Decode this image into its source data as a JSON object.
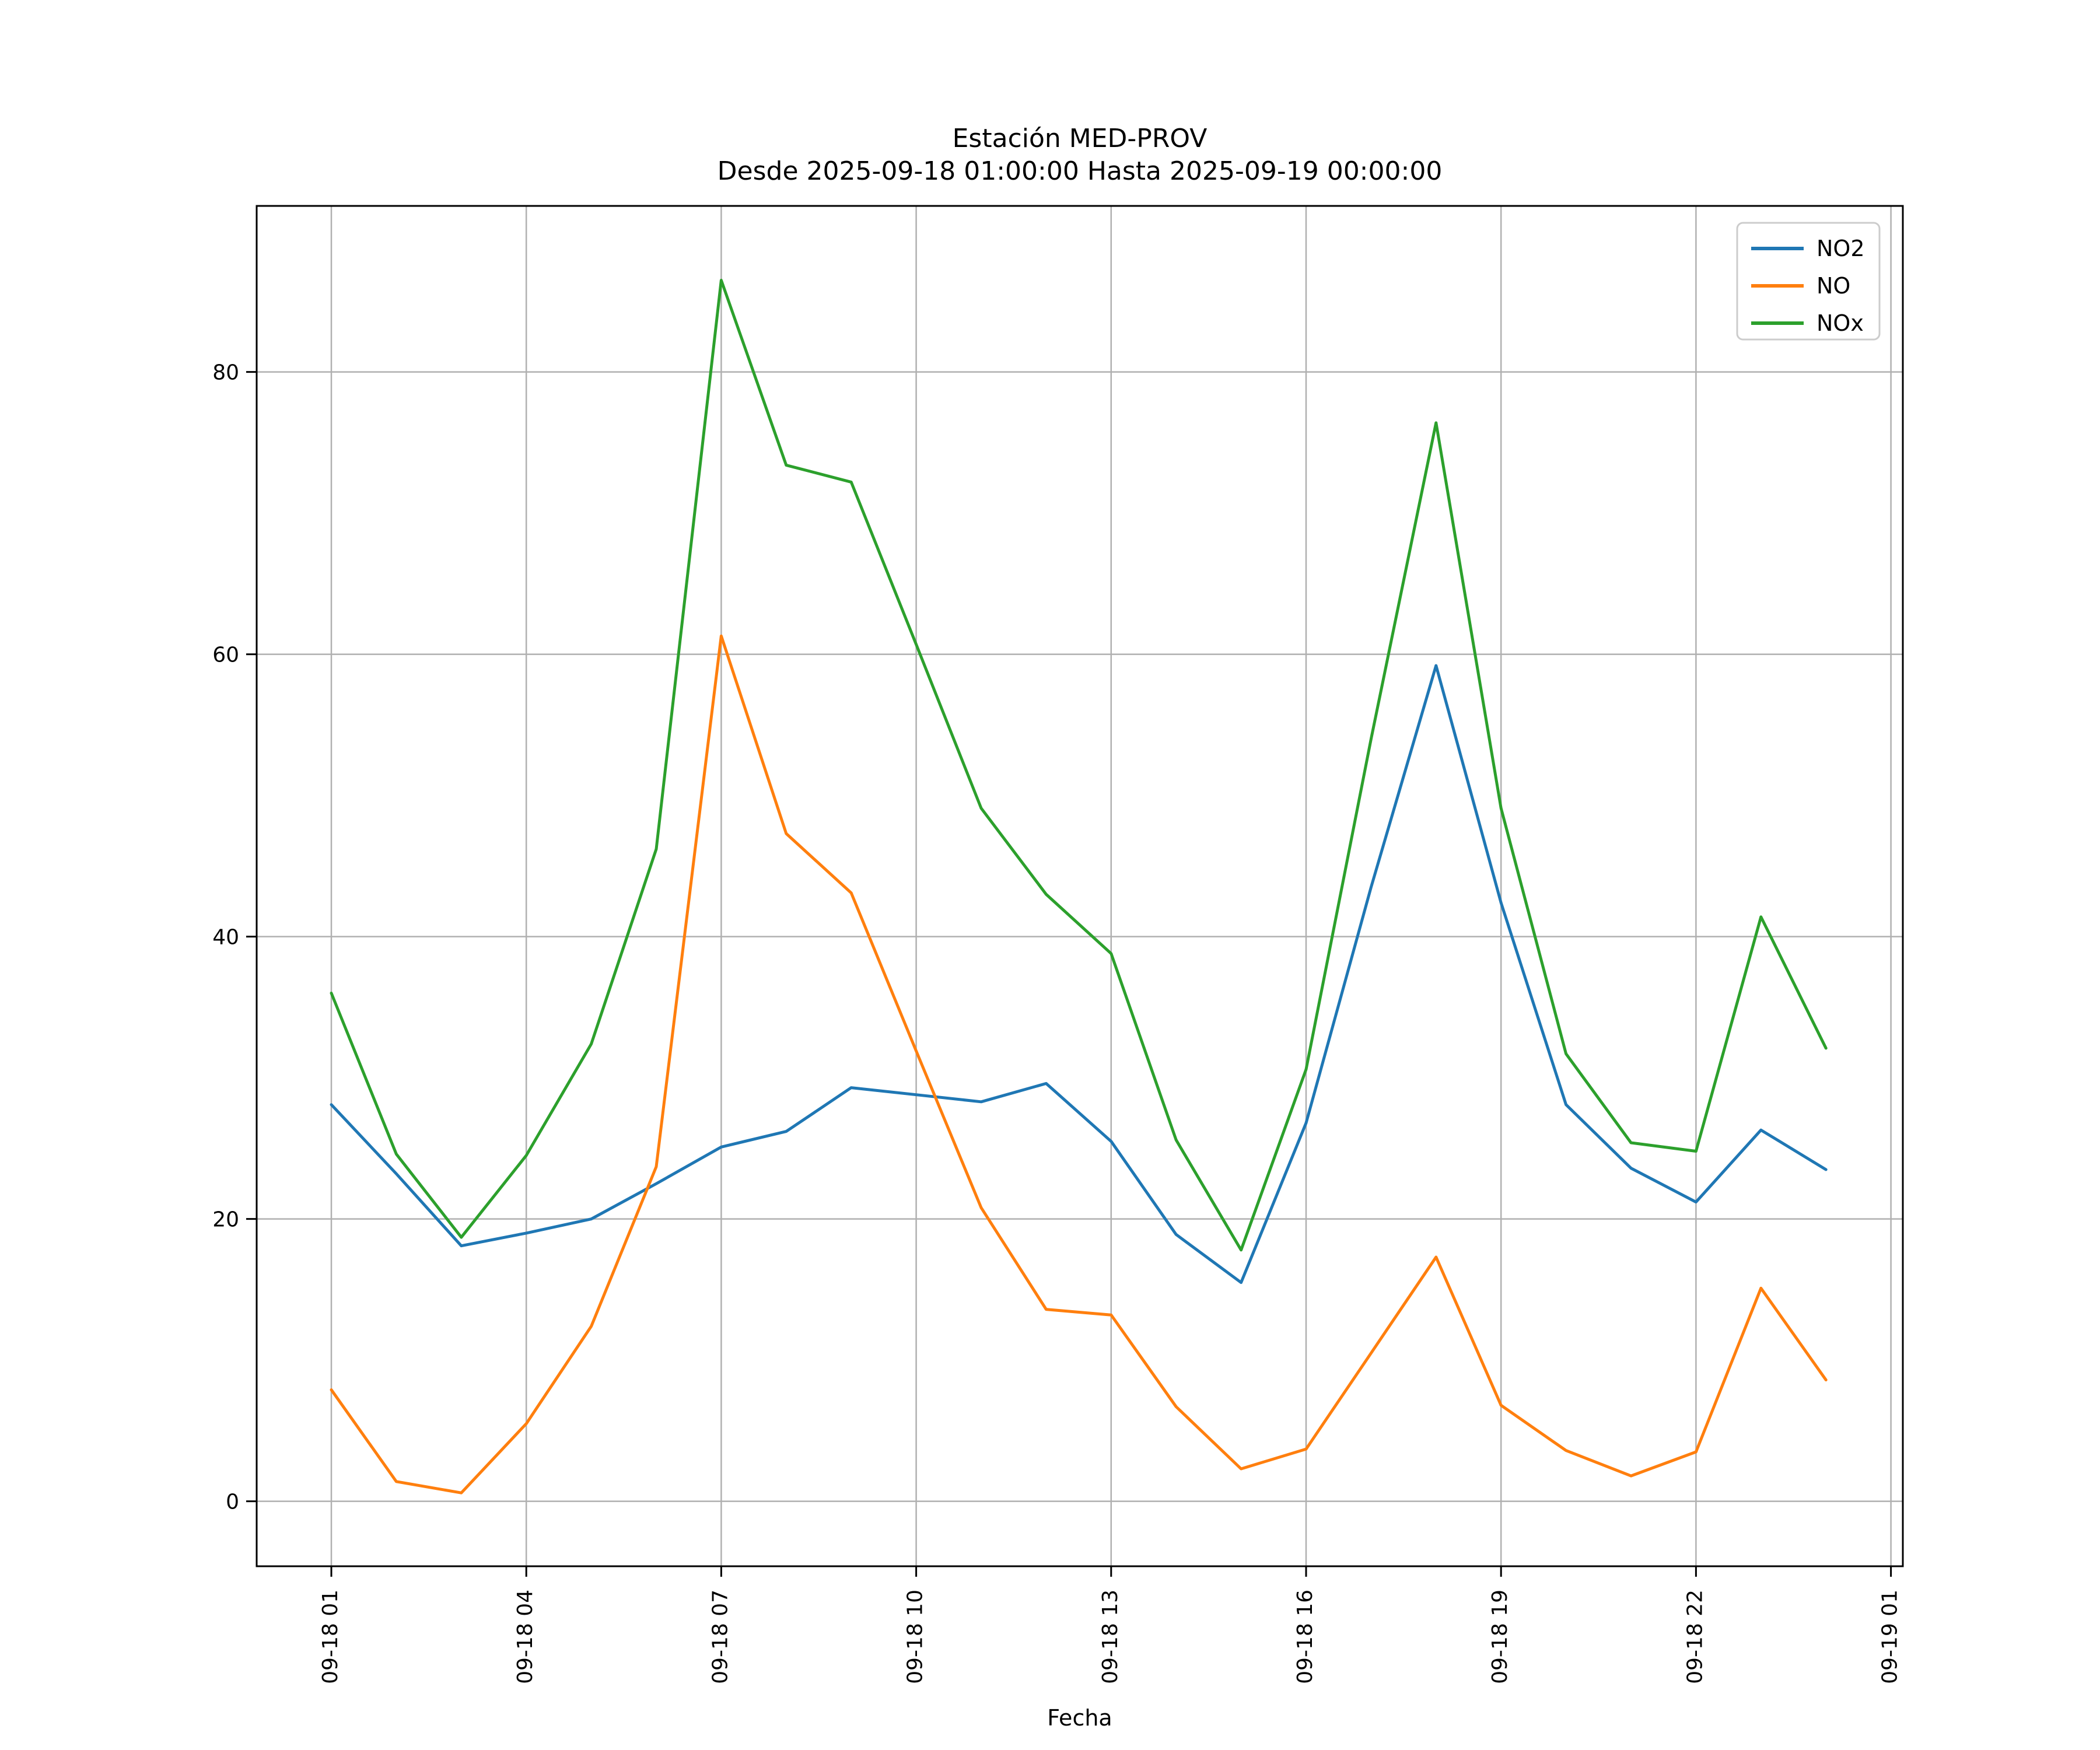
{
  "title": "Estación MED-PROV",
  "subtitle": "Desde 2025-09-18 01:00:00 Hasta 2025-09-19 00:00:00",
  "xlabel": "Fecha",
  "legend": {
    "position": "upper-right",
    "entries": [
      "NO2",
      "NO",
      "NOx"
    ]
  },
  "colors": {
    "NO2": "#1f77b4",
    "NO": "#ff7f0e",
    "NOx": "#2ca02c",
    "grid": "#b0b0b0",
    "spine": "#000000",
    "legend_border": "#cccccc"
  },
  "chart_data": {
    "type": "line",
    "title": "Estación MED-PROV\nDesde 2025-09-18 01:00:00 Hasta 2025-09-19 00:00:00",
    "xlabel": "Fecha",
    "ylabel": "",
    "grid": true,
    "legend_position": "upper right",
    "ylim": [
      -4.6,
      91.7
    ],
    "y_ticks": [
      0,
      20,
      40,
      60,
      80
    ],
    "x_tick_labels": [
      "09-18 01",
      "09-18 04",
      "09-18 07",
      "09-18 10",
      "09-18 13",
      "09-18 16",
      "09-18 19",
      "09-18 22",
      "09-19 01"
    ],
    "x": [
      "09-18 01",
      "09-18 02",
      "09-18 03",
      "09-18 04",
      "09-18 05",
      "09-18 06",
      "09-18 07",
      "09-18 08",
      "09-18 09",
      "09-18 10",
      "09-18 11",
      "09-18 12",
      "09-18 13",
      "09-18 14",
      "09-18 15",
      "09-18 16",
      "09-18 17",
      "09-18 18",
      "09-18 19",
      "09-18 20",
      "09-18 21",
      "09-18 22",
      "09-18 23",
      "09-19 00"
    ],
    "series": [
      {
        "name": "NO2",
        "color": "#1f77b4",
        "values": [
          28.1,
          23.2,
          18.1,
          19.0,
          20.0,
          22.5,
          25.1,
          26.2,
          29.3,
          28.8,
          28.3,
          29.6,
          25.5,
          18.9,
          15.5,
          26.8,
          43.5,
          59.2,
          42.4,
          28.1,
          23.6,
          21.2,
          26.3,
          23.5
        ]
      },
      {
        "name": "NO",
        "color": "#ff7f0e",
        "values": [
          7.9,
          1.4,
          0.6,
          5.5,
          12.4,
          23.7,
          61.3,
          47.3,
          43.1,
          31.9,
          20.8,
          13.6,
          13.2,
          6.7,
          2.3,
          3.7,
          10.5,
          17.3,
          6.8,
          3.6,
          1.8,
          3.5,
          15.1,
          8.6
        ]
      },
      {
        "name": "NOx",
        "color": "#2ca02c",
        "values": [
          36.0,
          24.6,
          18.7,
          24.5,
          32.4,
          46.2,
          86.5,
          73.4,
          72.2,
          60.7,
          49.1,
          43.0,
          38.8,
          25.6,
          17.8,
          30.6,
          54.0,
          76.4,
          49.1,
          31.7,
          25.4,
          24.8,
          41.4,
          32.1
        ]
      }
    ]
  },
  "layout_notes": "matplotlib-style line chart, x tick labels rotated 90 degrees"
}
